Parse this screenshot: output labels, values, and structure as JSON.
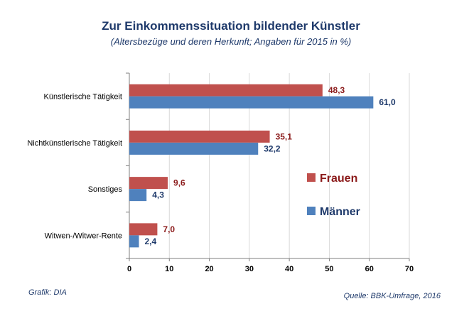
{
  "colors": {
    "title": "#1f3a6b",
    "frauen": "#c0504d",
    "maenner": "#4f81bd",
    "frauen_label": "#8b1a1a",
    "maenner_label": "#1f3a6b",
    "axis": "#7f7f7f",
    "footer": "#1f3a6b"
  },
  "chart_data": {
    "type": "bar",
    "orientation": "horizontal",
    "title": "Zur Einkommenssituation bildender Künstler",
    "subtitle": "(Altersbezüge und deren Herkunft; Angaben für 2015 in %)",
    "categories": [
      "Künstlerische Tätigkeit",
      "Nichtkünstlerische Tätigkeit",
      "Sonstiges",
      "Witwen-/Witwer-Rente"
    ],
    "series": [
      {
        "name": "Frauen",
        "values": [
          48.3,
          35.1,
          9.6,
          7.0
        ],
        "labels": [
          "48,3",
          "35,1",
          "9,6",
          "7,0"
        ]
      },
      {
        "name": "Männer",
        "values": [
          61.0,
          32.2,
          4.3,
          2.4
        ],
        "labels": [
          "61,0",
          "32,2",
          "4,3",
          "2,4"
        ]
      }
    ],
    "xlim": [
      0,
      70
    ],
    "xticks": [
      0,
      10,
      20,
      30,
      40,
      50,
      60,
      70
    ],
    "grid": true,
    "legend": "right"
  },
  "footer": {
    "left": "Grafik: DIA",
    "right": "Quelle: BBK-Umfrage, 2016"
  }
}
